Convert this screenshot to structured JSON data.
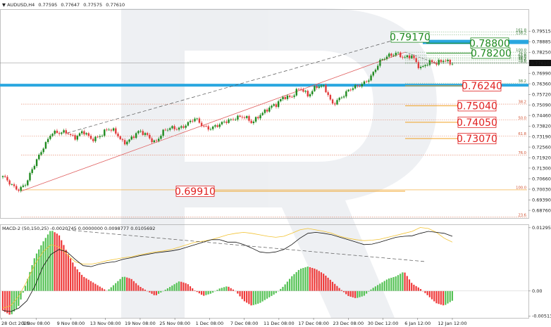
{
  "chart_data": [
    {
      "type": "candlestick",
      "title": "AUDUSD,H4",
      "header_values": [
        "0.77595",
        "0.77647",
        "0.77575",
        "0.77610"
      ],
      "current_price": "0.77610",
      "ylim": [
        0.683,
        0.808
      ],
      "y_ticks": [
        "0.79515",
        "0.78885",
        "0.78250",
        "0.77610",
        "0.76990",
        "0.76360",
        "0.75720",
        "0.75090",
        "0.74460",
        "0.73820",
        "0.73190",
        "0.72560",
        "0.71920",
        "0.71300",
        "0.70660",
        "0.70030",
        "0.69390",
        "0.68760"
      ],
      "x_ticks": [
        "28 Oct 2020",
        "3 Nov 08:00",
        "9 Nov 08:00",
        "13 Nov 08:00",
        "19 Nov 08:00",
        "25 Nov 08:00",
        "1 Dec 08:00",
        "7 Dec 08:00",
        "11 Dec 08:00",
        "17 Dec 08:00",
        "23 Dec 08:00",
        "30 Dec 12:00",
        "6 Jan 12:00",
        "12 Jan 12:00"
      ],
      "price_path": [
        0.707,
        0.703,
        0.701,
        0.704,
        0.715,
        0.726,
        0.734,
        0.733,
        0.735,
        0.732,
        0.734,
        0.73,
        0.733,
        0.736,
        0.734,
        0.729,
        0.731,
        0.734,
        0.733,
        0.729,
        0.734,
        0.737,
        0.738,
        0.739,
        0.742,
        0.739,
        0.737,
        0.738,
        0.742,
        0.744,
        0.743,
        0.74,
        0.746,
        0.748,
        0.75,
        0.757,
        0.756,
        0.76,
        0.757,
        0.763,
        0.761,
        0.751,
        0.756,
        0.759,
        0.761,
        0.765,
        0.769,
        0.776,
        0.781,
        0.783,
        0.778,
        0.78,
        0.774,
        0.776,
        0.775,
        0.779,
        0.7761
      ],
      "resistance_zone": [
        "0.76360",
        "0.76250"
      ],
      "target_zone": [
        "0.79000",
        "0.78800"
      ],
      "levels": [
        {
          "label": "0.79170",
          "value": 0.7917,
          "color": "#1e8a1e"
        },
        {
          "label": "0.78800",
          "value": 0.788,
          "color": "#1e8a1e"
        },
        {
          "label": "0.78200",
          "value": 0.782,
          "color": "#1e8a1e"
        },
        {
          "label": "0.76240",
          "value": 0.7624,
          "color": "#e02020"
        },
        {
          "label": "0.75040",
          "value": 0.7504,
          "color": "#e02020"
        },
        {
          "label": "0.74050",
          "value": 0.7405,
          "color": "#e02020"
        },
        {
          "label": "0.73070",
          "value": 0.7307,
          "color": "#e02020"
        },
        {
          "label": "0.69910",
          "value": 0.6991,
          "color": "#e02020"
        }
      ],
      "fib_right": [
        {
          "label": "161.8",
          "value": 0.7947
        },
        {
          "label": "138.2",
          "value": 0.793
        },
        {
          "label": "100.0",
          "value": 0.7826
        },
        {
          "label": "76.0",
          "value": 0.7808
        },
        {
          "label": "61.8",
          "value": 0.7795
        },
        {
          "label": "50.0",
          "value": 0.7787
        },
        {
          "label": "38.2",
          "value": 0.7777
        },
        {
          "label": "23.6",
          "value": 0.7766
        },
        {
          "label": "0.0",
          "value": 0.7758
        },
        {
          "label": "38.2",
          "value": 0.764
        }
      ],
      "fib_main": [
        {
          "label": "38.2",
          "value": 0.7514
        },
        {
          "label": "50.0",
          "value": 0.7418
        },
        {
          "label": "61.8",
          "value": 0.7323
        },
        {
          "label": "76.0",
          "value": 0.7207
        },
        {
          "label": "100.0",
          "value": 0.6999
        },
        {
          "label": "23.6",
          "value": 0.6835
        }
      ]
    },
    {
      "type": "bar",
      "title": "MACD-2 (50,150,25) -0.0020745 0.0000000 0.0098777 0.0105692",
      "ylim": [
        -0.0055,
        0.0135
      ],
      "y_ticks": [
        "0.012951",
        "0.00",
        "-0.005131"
      ],
      "histogram": [
        -0.004,
        -0.005,
        -0.003,
        0.002,
        0.007,
        0.01,
        0.0125,
        0.0115,
        0.008,
        0.005,
        0.003,
        0.002,
        0.001,
        0.0,
        0.0015,
        0.003,
        0.0025,
        0.001,
        0.0,
        -0.001,
        0.0,
        0.001,
        0.002,
        0.0015,
        0.0,
        -0.001,
        -0.0005,
        0.0005,
        0.001,
        0.0,
        -0.002,
        -0.003,
        -0.0025,
        -0.0015,
        -0.0005,
        0.001,
        0.003,
        0.0045,
        0.005,
        0.0045,
        0.0035,
        0.002,
        0.0005,
        -0.001,
        -0.0015,
        -0.001,
        0.0005,
        0.0015,
        0.0025,
        0.003,
        0.004,
        0.0015,
        0.0005,
        -0.001,
        -0.0025,
        -0.003,
        -0.002
      ],
      "signal_line": [
        -0.004,
        -0.0042,
        -0.0035,
        -0.002,
        0.001,
        0.005,
        0.0075,
        0.0085,
        0.008,
        0.0065,
        0.0052,
        0.005,
        0.0055,
        0.0058,
        0.006,
        0.0065,
        0.0068,
        0.0072,
        0.0075,
        0.0078,
        0.008,
        0.0082,
        0.0085,
        0.009,
        0.0095,
        0.01,
        0.0105,
        0.0105,
        0.01,
        0.01,
        0.0095,
        0.0088,
        0.008,
        0.0078,
        0.008,
        0.0085,
        0.0095,
        0.0108,
        0.0118,
        0.012,
        0.0118,
        0.0115,
        0.011,
        0.0105,
        0.01,
        0.0095,
        0.0096,
        0.01,
        0.0105,
        0.011,
        0.0112,
        0.0113,
        0.0118,
        0.0122,
        0.012,
        0.0118,
        0.0112
      ],
      "ma_line": [
        -0.0035,
        -0.003,
        -0.001,
        0.002,
        0.0055,
        0.008,
        0.0095,
        0.009,
        0.0075,
        0.006,
        0.0055,
        0.0055,
        0.0058,
        0.0062,
        0.0065,
        0.0068,
        0.007,
        0.0074,
        0.0077,
        0.008,
        0.0082,
        0.0085,
        0.009,
        0.0095,
        0.01,
        0.0102,
        0.0105,
        0.011,
        0.0115,
        0.0118,
        0.012,
        0.0118,
        0.0115,
        0.0112,
        0.011,
        0.0112,
        0.0118,
        0.0125,
        0.0128,
        0.0125,
        0.0122,
        0.0118,
        0.0112,
        0.0108,
        0.0105,
        0.0103,
        0.0104,
        0.0106,
        0.011,
        0.0114,
        0.0118,
        0.0122,
        0.013,
        0.0128,
        0.012,
        0.0108,
        0.01
      ]
    }
  ],
  "colors": {
    "up": "#1f8a1f",
    "down": "#e23b3b",
    "hist_up": "#55c255",
    "hist_down": "#ef3a3a",
    "zone": "#2aa7e0",
    "trend_red": "#e06060",
    "fib_orange": "#f0a020",
    "level_green": "#1e8a1e",
    "level_red": "#e02020"
  }
}
